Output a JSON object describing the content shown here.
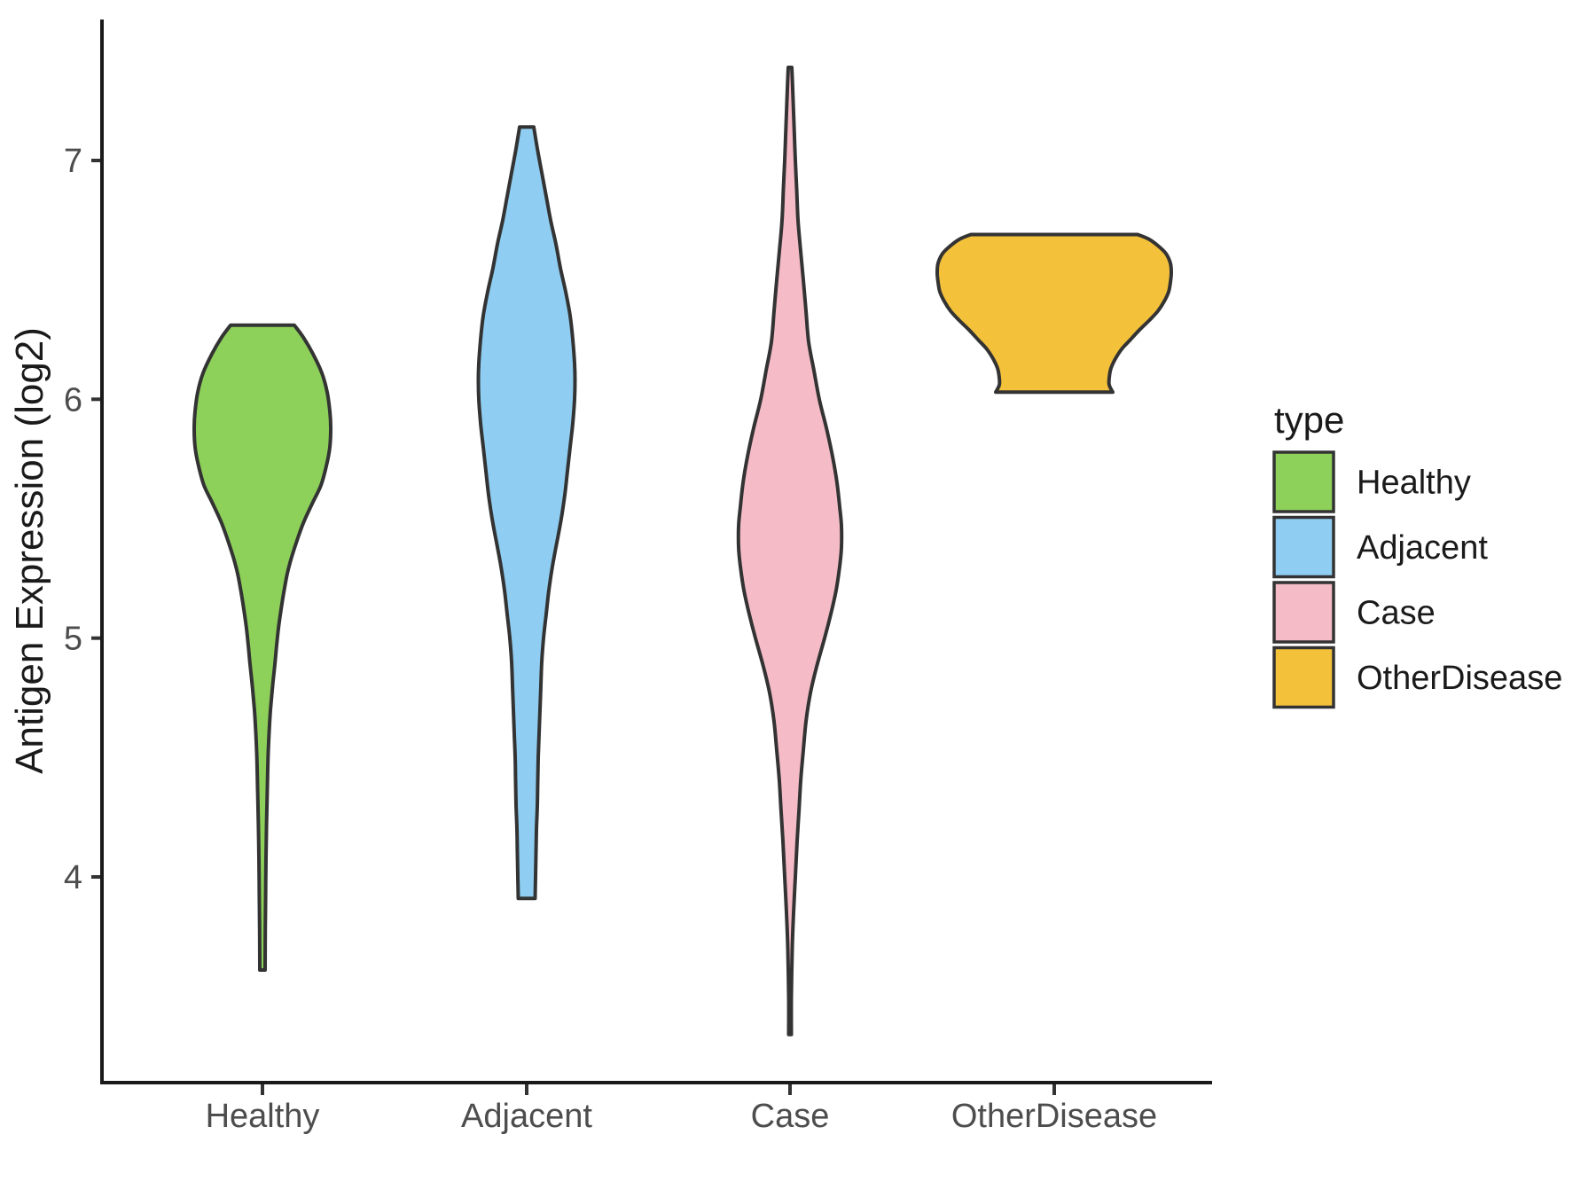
{
  "style": {
    "background": "#FFFFFF",
    "violin_outline": "#333333",
    "axis_line_color": "#1A1A1A",
    "tick_mark_color": "#333333",
    "axis_text_color": "#4D4D4D",
    "title_text_color": "#1A1A1A"
  },
  "chart_data": {
    "type": "violin",
    "title": "",
    "xlabel": "",
    "ylabel": "Antigen Expression (log2)",
    "categories": [
      "Healthy",
      "Adjacent",
      "Case",
      "OtherDisease"
    ],
    "y_ticks": [
      7,
      6,
      5,
      4
    ],
    "ylim": [
      3.2,
      7.6
    ],
    "grid": false,
    "legend": {
      "title": "type",
      "position": "right",
      "entries": [
        {
          "label": "Healthy",
          "color": "#8DD05A"
        },
        {
          "label": "Adjacent",
          "color": "#8FCEF2"
        },
        {
          "label": "Case",
          "color": "#F5BCC8"
        },
        {
          "label": "OtherDisease",
          "color": "#F4C13B"
        }
      ]
    },
    "series": [
      {
        "name": "Healthy",
        "color": "#8DD05A",
        "min": 3.6,
        "max": 6.31,
        "flat_top": true,
        "profile": [
          [
            6.31,
            36
          ],
          [
            6.26,
            46
          ],
          [
            6.19,
            57
          ],
          [
            6.11,
            67
          ],
          [
            6.03,
            73
          ],
          [
            5.95,
            76
          ],
          [
            5.88,
            77
          ],
          [
            5.8,
            76
          ],
          [
            5.72,
            72
          ],
          [
            5.64,
            66
          ],
          [
            5.57,
            57
          ],
          [
            5.49,
            47
          ],
          [
            5.42,
            40
          ],
          [
            5.34,
            33
          ],
          [
            5.27,
            28
          ],
          [
            5.19,
            24
          ],
          [
            5.12,
            21
          ],
          [
            5.04,
            18
          ],
          [
            4.97,
            16
          ],
          [
            4.89,
            14
          ],
          [
            4.82,
            12
          ],
          [
            4.74,
            10
          ],
          [
            4.67,
            8.5
          ],
          [
            4.52,
            6.5
          ],
          [
            4.37,
            5.5
          ],
          [
            4.22,
            4.6
          ],
          [
            4.08,
            4
          ],
          [
            3.93,
            3.6
          ],
          [
            3.78,
            3.2
          ],
          [
            3.61,
            3
          ]
        ]
      },
      {
        "name": "Adjacent",
        "color": "#8FCEF2",
        "min": 3.91,
        "max": 7.14,
        "flat_top": true,
        "profile": [
          [
            7.14,
            8
          ],
          [
            7.05,
            12
          ],
          [
            6.95,
            17
          ],
          [
            6.85,
            22
          ],
          [
            6.75,
            27
          ],
          [
            6.65,
            33
          ],
          [
            6.55,
            38
          ],
          [
            6.45,
            44
          ],
          [
            6.35,
            49
          ],
          [
            6.25,
            52
          ],
          [
            6.15,
            54
          ],
          [
            6.08,
            54.5
          ],
          [
            6.0,
            54
          ],
          [
            5.9,
            52
          ],
          [
            5.8,
            49
          ],
          [
            5.7,
            46
          ],
          [
            5.6,
            43
          ],
          [
            5.5,
            39
          ],
          [
            5.4,
            34
          ],
          [
            5.3,
            29
          ],
          [
            5.2,
            25
          ],
          [
            5.1,
            22
          ],
          [
            5.0,
            19
          ],
          [
            4.9,
            17
          ],
          [
            4.8,
            16
          ],
          [
            4.7,
            15
          ],
          [
            4.6,
            14
          ],
          [
            4.5,
            13
          ],
          [
            4.4,
            12.5
          ],
          [
            4.3,
            12
          ],
          [
            4.2,
            11
          ],
          [
            4.1,
            10.5
          ],
          [
            4.0,
            10
          ],
          [
            3.91,
            9.5
          ]
        ]
      },
      {
        "name": "Case",
        "color": "#F5BCC8",
        "min": 3.34,
        "max": 7.39,
        "flat_top": false,
        "profile": [
          [
            7.39,
            2
          ],
          [
            7.3,
            3
          ],
          [
            7.2,
            4
          ],
          [
            7.1,
            5
          ],
          [
            7.0,
            6
          ],
          [
            6.88,
            7.5
          ],
          [
            6.75,
            9
          ],
          [
            6.62,
            12
          ],
          [
            6.5,
            15
          ],
          [
            6.37,
            18
          ],
          [
            6.24,
            21
          ],
          [
            6.12,
            27
          ],
          [
            6.0,
            33
          ],
          [
            5.88,
            41
          ],
          [
            5.76,
            48
          ],
          [
            5.65,
            53
          ],
          [
            5.55,
            56
          ],
          [
            5.47,
            58
          ],
          [
            5.38,
            58
          ],
          [
            5.3,
            56
          ],
          [
            5.2,
            52
          ],
          [
            5.1,
            46
          ],
          [
            5.0,
            39
          ],
          [
            4.88,
            30
          ],
          [
            4.77,
            23
          ],
          [
            4.65,
            18
          ],
          [
            4.53,
            15
          ],
          [
            4.4,
            12
          ],
          [
            4.27,
            10
          ],
          [
            4.15,
            8
          ],
          [
            4.0,
            6
          ],
          [
            3.85,
            4
          ],
          [
            3.7,
            2.5
          ],
          [
            3.5,
            1.5
          ],
          [
            3.34,
            1.5
          ]
        ]
      },
      {
        "name": "OtherDisease",
        "color": "#F4C13B",
        "min": 6.03,
        "max": 6.69,
        "flat_top": true,
        "profile": [
          [
            6.69,
            94
          ],
          [
            6.67,
            107
          ],
          [
            6.64,
            118
          ],
          [
            6.61,
            126
          ],
          [
            6.57,
            131
          ],
          [
            6.53,
            132
          ],
          [
            6.49,
            131
          ],
          [
            6.45,
            129
          ],
          [
            6.41,
            124
          ],
          [
            6.37,
            117
          ],
          [
            6.33,
            107
          ],
          [
            6.29,
            96
          ],
          [
            6.25,
            86
          ],
          [
            6.21,
            76
          ],
          [
            6.17,
            69
          ],
          [
            6.13,
            64
          ],
          [
            6.09,
            62
          ],
          [
            6.06,
            62
          ],
          [
            6.03,
            66
          ]
        ]
      }
    ]
  }
}
